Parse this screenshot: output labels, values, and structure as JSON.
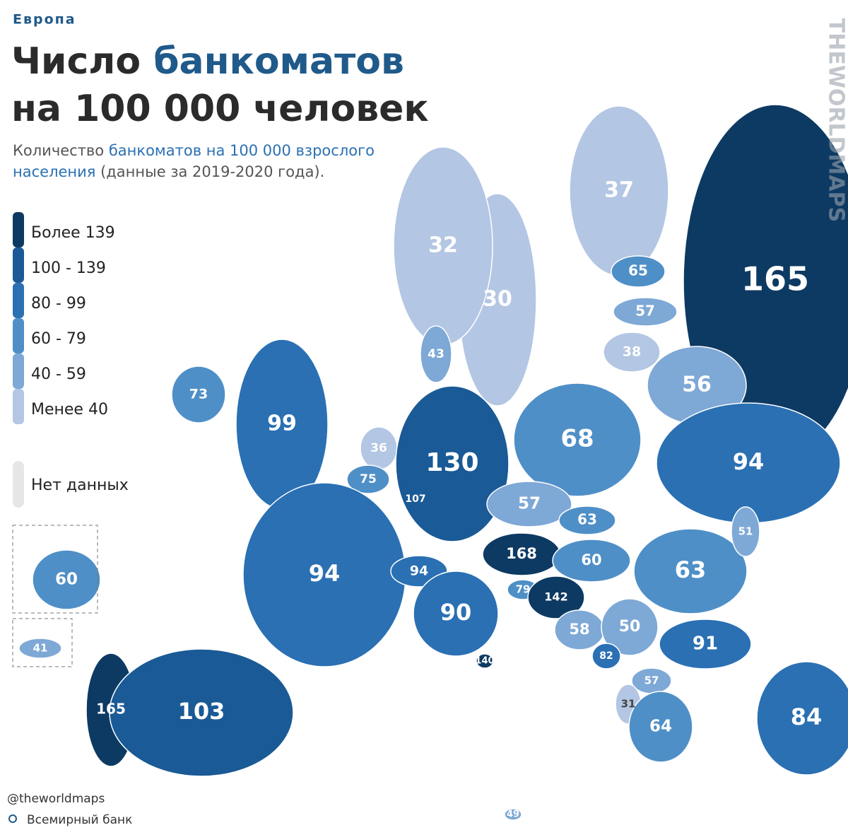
{
  "header": {
    "kicker": "Европа",
    "title_part1": "Число ",
    "title_part2": "банкоматов",
    "title_line2": "на 100 000 человек",
    "subtitle_part1": "Количество ",
    "subtitle_part2": "банкоматов на 100 000 взрослого",
    "subtitle_part3": "населения",
    "subtitle_part4": " (данные за 2019-2020 года)."
  },
  "legend": {
    "items": [
      {
        "label": "Более 139",
        "color": "#0d3a63"
      },
      {
        "label": "100 - 139",
        "color": "#1a5a96"
      },
      {
        "label": "80 - 99",
        "color": "#2a70b3"
      },
      {
        "label": "60 - 79",
        "color": "#4f8fc7"
      },
      {
        "label": "40 - 59",
        "color": "#7ea8d6"
      },
      {
        "label": "Менее 40",
        "color": "#b3c6e3"
      }
    ],
    "no_data": {
      "label": "Нет данных",
      "color": "#e6e6e6"
    }
  },
  "regions": [
    {
      "value": 165,
      "color": "#0d3a63"
    },
    {
      "value": 37,
      "color": "#b3c6e3"
    },
    {
      "value": 30,
      "color": "#b3c6e3"
    },
    {
      "value": 32,
      "color": "#b3c6e3"
    },
    {
      "value": 65,
      "color": "#4f8fc7"
    },
    {
      "value": 57,
      "color": "#7ea8d6"
    },
    {
      "value": 38,
      "color": "#b3c6e3"
    },
    {
      "value": 56,
      "color": "#7ea8d6"
    },
    {
      "value": 73,
      "color": "#4f8fc7"
    },
    {
      "value": 99,
      "color": "#2a70b3"
    },
    {
      "value": 43,
      "color": "#7ea8d6"
    },
    {
      "value": 36,
      "color": "#b3c6e3"
    },
    {
      "value": 75,
      "color": "#4f8fc7"
    },
    {
      "value": 107,
      "color": "#1a5a96"
    },
    {
      "value": 130,
      "color": "#1a5a96"
    },
    {
      "value": 68,
      "color": "#4f8fc7"
    },
    {
      "value": 94,
      "color": "#2a70b3"
    },
    {
      "value": 57,
      "color": "#7ea8d6"
    },
    {
      "value": 63,
      "color": "#4f8fc7"
    },
    {
      "value": 168,
      "color": "#0d3a63"
    },
    {
      "value": 60,
      "color": "#4f8fc7"
    },
    {
      "value": 63,
      "color": "#4f8fc7"
    },
    {
      "value": 51,
      "color": "#7ea8d6"
    },
    {
      "value": 94,
      "color": "#2a70b3"
    },
    {
      "value": 94,
      "color": "#2a70b3"
    },
    {
      "value": 79,
      "color": "#4f8fc7"
    },
    {
      "value": 142,
      "color": "#0d3a63"
    },
    {
      "value": 90,
      "color": "#2a70b3"
    },
    {
      "value": 58,
      "color": "#7ea8d6"
    },
    {
      "value": 50,
      "color": "#7ea8d6"
    },
    {
      "value": 91,
      "color": "#2a70b3"
    },
    {
      "value": 82,
      "color": "#2a70b3"
    },
    {
      "value": 140,
      "color": "#0d3a63"
    },
    {
      "value": 57,
      "color": "#7ea8d6"
    },
    {
      "value": 31,
      "color": "#b3c6e3"
    },
    {
      "value": 64,
      "color": "#4f8fc7"
    },
    {
      "value": 84,
      "color": "#2a70b3"
    },
    {
      "value": 165,
      "color": "#0d3a63"
    },
    {
      "value": 103,
      "color": "#1a5a96"
    },
    {
      "value": 60,
      "color": "#4f8fc7"
    },
    {
      "value": 41,
      "color": "#7ea8d6"
    },
    {
      "value": 49,
      "color": "#7ea8d6"
    }
  ],
  "watermark": "THEWORLDMAPS",
  "footer": {
    "handle": "@theworldmaps",
    "source": "Всемирный банк"
  }
}
